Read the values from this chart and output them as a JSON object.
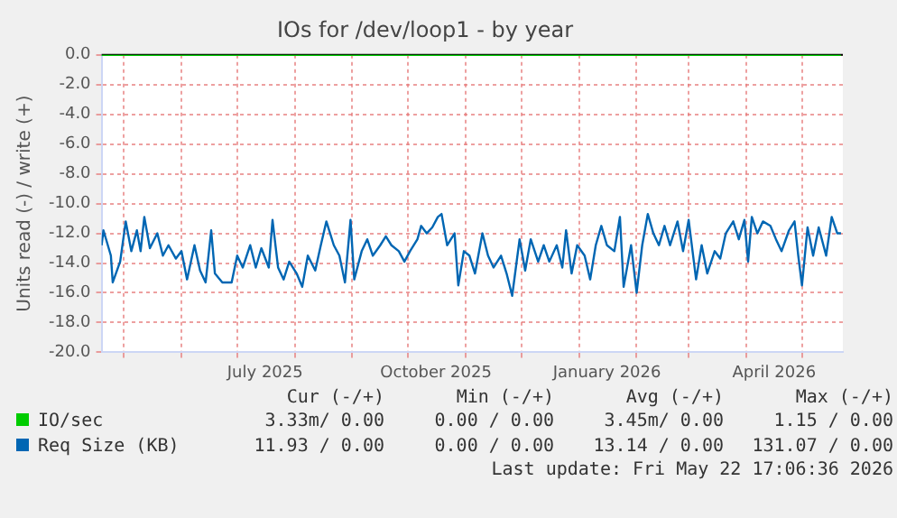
{
  "chart_data": {
    "type": "line",
    "title": "IOs for /dev/loop1 - by year",
    "ylabel": "Units read (-) / write (+)",
    "x": [
      "2025-04-19",
      "2025-04-20",
      "2025-04-24",
      "2025-04-25",
      "2025-04-29",
      "2025-05-02",
      "2025-05-05",
      "2025-05-08",
      "2025-05-10",
      "2025-05-12",
      "2025-05-15",
      "2025-05-19",
      "2025-05-22",
      "2025-05-25",
      "2025-05-29",
      "2025-06-01",
      "2025-06-04",
      "2025-06-08",
      "2025-06-11",
      "2025-06-14",
      "2025-06-17",
      "2025-06-19",
      "2025-06-23",
      "2025-06-28",
      "2025-07-01",
      "2025-07-04",
      "2025-07-08",
      "2025-07-11",
      "2025-07-14",
      "2025-07-18",
      "2025-07-20",
      "2025-07-23",
      "2025-07-26",
      "2025-07-29",
      "2025-08-02",
      "2025-08-05",
      "2025-08-08",
      "2025-08-12",
      "2025-08-15",
      "2025-08-18",
      "2025-08-22",
      "2025-08-25",
      "2025-08-28",
      "2025-08-31",
      "2025-09-02",
      "2025-09-06",
      "2025-09-09",
      "2025-09-12",
      "2025-09-16",
      "2025-09-19",
      "2025-09-22",
      "2025-09-26",
      "2025-09-29",
      "2025-10-02",
      "2025-10-06",
      "2025-10-08",
      "2025-10-11",
      "2025-10-14",
      "2025-10-17",
      "2025-10-19",
      "2025-10-22",
      "2025-10-26",
      "2025-10-28",
      "2025-10-31",
      "2025-11-03",
      "2025-11-06",
      "2025-11-10",
      "2025-11-13",
      "2025-11-16",
      "2025-11-20",
      "2025-11-23",
      "2025-11-26",
      "2025-11-30",
      "2025-12-03",
      "2025-12-06",
      "2025-12-10",
      "2025-12-13",
      "2025-12-16",
      "2025-12-20",
      "2025-12-23",
      "2025-12-25",
      "2025-12-28",
      "2025-12-31",
      "2026-01-04",
      "2026-01-07",
      "2026-01-10",
      "2026-01-13",
      "2026-01-16",
      "2026-01-20",
      "2026-01-23",
      "2026-01-25",
      "2026-01-29",
      "2026-02-01",
      "2026-02-04",
      "2026-02-07",
      "2026-02-10",
      "2026-02-13",
      "2026-02-16",
      "2026-02-19",
      "2026-02-23",
      "2026-02-26",
      "2026-03-01",
      "2026-03-05",
      "2026-03-08",
      "2026-03-11",
      "2026-03-15",
      "2026-03-18",
      "2026-03-21",
      "2026-03-25",
      "2026-03-28",
      "2026-03-31",
      "2026-04-02",
      "2026-04-04",
      "2026-04-07",
      "2026-04-10",
      "2026-04-14",
      "2026-04-17",
      "2026-04-20",
      "2026-04-24",
      "2026-04-27",
      "2026-04-29",
      "2026-05-01",
      "2026-05-04",
      "2026-05-07",
      "2026-05-10",
      "2026-05-14",
      "2026-05-17",
      "2026-05-20",
      "2026-05-22"
    ],
    "series": [
      {
        "name": "IO/sec",
        "color": "#00cc00",
        "values": [
          0,
          0,
          0,
          0,
          0,
          0,
          0,
          0,
          0,
          0,
          0,
          0,
          0,
          0,
          0,
          0,
          0,
          0,
          0,
          0,
          0,
          0,
          0,
          0,
          0,
          0,
          0,
          0,
          0,
          0,
          0,
          0,
          0,
          0,
          0,
          0,
          0,
          0,
          0,
          0,
          0,
          0,
          0,
          0,
          0,
          0,
          0,
          0,
          0,
          0,
          0,
          0,
          0,
          0,
          0,
          0,
          0,
          0,
          0,
          0,
          0,
          0,
          0,
          0,
          0,
          0,
          0,
          0,
          0,
          0,
          0,
          0,
          0,
          0,
          0,
          0,
          0,
          0,
          0,
          0,
          0,
          0,
          0,
          0,
          0,
          0,
          0,
          0,
          0,
          0,
          0,
          0,
          0,
          0,
          0,
          0,
          0,
          0,
          0,
          0,
          0,
          0,
          0,
          0,
          0,
          0,
          0,
          0,
          0,
          0,
          0,
          0,
          0,
          0,
          0,
          0,
          0,
          0,
          0,
          0,
          0,
          0,
          0,
          0,
          0,
          0,
          0,
          0,
          0
        ]
      },
      {
        "name": "Req Size (KB)",
        "color": "#0066b3",
        "values": [
          -12.8,
          -11.8,
          -13.5,
          -15.3,
          -13.9,
          -11.2,
          -13.2,
          -11.8,
          -13.2,
          -10.9,
          -13.0,
          -12.0,
          -13.5,
          -12.8,
          -13.7,
          -13.2,
          -15.1,
          -12.8,
          -14.5,
          -15.3,
          -11.8,
          -14.7,
          -15.3,
          -15.3,
          -13.5,
          -14.3,
          -12.8,
          -14.3,
          -13.0,
          -14.3,
          -11.1,
          -14.3,
          -15.1,
          -13.9,
          -14.7,
          -15.6,
          -13.5,
          -14.5,
          -12.8,
          -11.2,
          -12.8,
          -13.5,
          -15.3,
          -11.1,
          -15.1,
          -13.2,
          -12.4,
          -13.5,
          -12.8,
          -12.2,
          -12.8,
          -13.2,
          -13.9,
          -13.2,
          -12.4,
          -11.5,
          -12.0,
          -11.6,
          -10.9,
          -10.7,
          -12.8,
          -12.0,
          -15.5,
          -13.2,
          -13.5,
          -14.7,
          -12.0,
          -13.5,
          -14.3,
          -13.5,
          -14.7,
          -16.2,
          -12.4,
          -14.5,
          -12.4,
          -13.9,
          -12.8,
          -13.9,
          -12.8,
          -14.3,
          -11.8,
          -14.7,
          -12.8,
          -13.5,
          -15.1,
          -12.8,
          -11.5,
          -12.8,
          -13.2,
          -10.9,
          -15.6,
          -12.8,
          -16.0,
          -12.8,
          -10.7,
          -12.0,
          -12.8,
          -11.5,
          -12.8,
          -11.2,
          -13.2,
          -11.1,
          -15.1,
          -12.8,
          -14.7,
          -13.2,
          -13.7,
          -12.0,
          -11.2,
          -12.4,
          -11.1,
          -13.9,
          -10.9,
          -12.0,
          -11.2,
          -11.5,
          -12.4,
          -13.2,
          -11.8,
          -11.2,
          -13.5,
          -15.5,
          -11.6,
          -13.5,
          -11.6,
          -13.5,
          -10.9,
          -12.0,
          -12.0
        ]
      }
    ],
    "xlim": [
      "2025-04-19",
      "2026-05-23"
    ],
    "xticks": [
      {
        "value": "2025-05-01",
        "label": null
      },
      {
        "value": "2025-06-01",
        "label": null
      },
      {
        "value": "2025-07-01",
        "label": null
      },
      {
        "value": "2025-07-16",
        "label": "July 2025"
      },
      {
        "value": "2025-08-01",
        "label": null
      },
      {
        "value": "2025-09-01",
        "label": null
      },
      {
        "value": "2025-10-01",
        "label": null
      },
      {
        "value": "2025-10-16",
        "label": "October 2025"
      },
      {
        "value": "2025-11-01",
        "label": null
      },
      {
        "value": "2025-12-01",
        "label": null
      },
      {
        "value": "2026-01-01",
        "label": null
      },
      {
        "value": "2026-01-16",
        "label": "January 2026"
      },
      {
        "value": "2026-02-01",
        "label": null
      },
      {
        "value": "2026-03-01",
        "label": null
      },
      {
        "value": "2026-04-01",
        "label": null
      },
      {
        "value": "2026-04-16",
        "label": "April 2026"
      },
      {
        "value": "2026-05-01",
        "label": null
      }
    ],
    "ylim": [
      -20,
      0
    ],
    "yticks": [
      {
        "value": 0,
        "label": "0.0"
      },
      {
        "value": -2,
        "label": "-2.0"
      },
      {
        "value": -4,
        "label": "-4.0"
      },
      {
        "value": -6,
        "label": "-6.0"
      },
      {
        "value": -8,
        "label": "-8.0"
      },
      {
        "value": -10,
        "label": "-10.0"
      },
      {
        "value": -12,
        "label": "-12.0"
      },
      {
        "value": -14,
        "label": "-14.0"
      },
      {
        "value": -16,
        "label": "-16.0"
      },
      {
        "value": -18,
        "label": "-18.0"
      },
      {
        "value": -20,
        "label": "-20.0"
      }
    ],
    "grid": true,
    "legend": "bottom",
    "marker": "none",
    "line_style": "solid",
    "ref_lines": [
      {
        "axis": "y",
        "value": 0,
        "color": "#000000"
      }
    ],
    "annotations": [
      "Cur (-/+)",
      "Min (-/+)",
      "Avg (-/+)",
      "Max (-/+)",
      "3.33m/ 0.00",
      "0.00 / 0.00",
      "3.45m/ 0.00",
      "1.15 / 0.00",
      "11.93 / 0.00",
      "0.00 / 0.00",
      "13.14 / 0.00",
      "131.07 / 0.00",
      "Last update: Fri May 22 17:06:36 2026"
    ]
  }
}
